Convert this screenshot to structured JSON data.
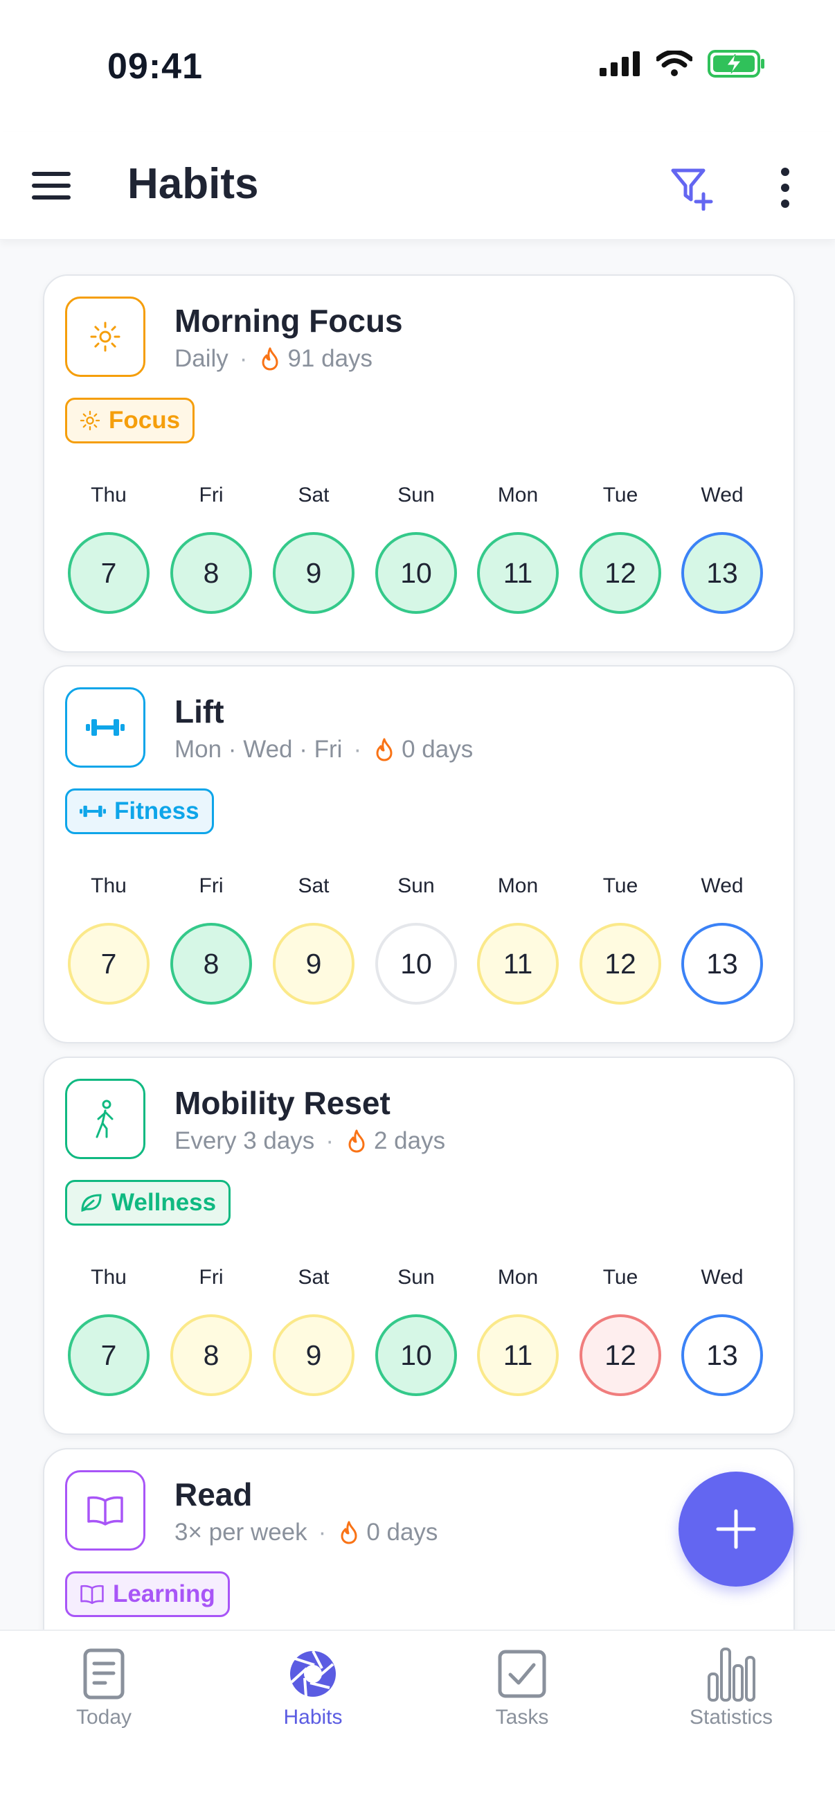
{
  "status": {
    "time": "09:41"
  },
  "header": {
    "title": "Habits"
  },
  "habits": [
    {
      "title": "Morning Focus",
      "frequency": "Daily",
      "streak": "91 days",
      "tag": "Focus",
      "accent": "#f59e0b",
      "tag_bg": "#fff7e6",
      "icon": "sun-icon",
      "days": [
        {
          "name": "Thu",
          "num": "7",
          "state": "done"
        },
        {
          "name": "Fri",
          "num": "8",
          "state": "done"
        },
        {
          "name": "Sat",
          "num": "9",
          "state": "done"
        },
        {
          "name": "Sun",
          "num": "10",
          "state": "done"
        },
        {
          "name": "Mon",
          "num": "11",
          "state": "done"
        },
        {
          "name": "Tue",
          "num": "12",
          "state": "done"
        },
        {
          "name": "Wed",
          "num": "13",
          "state": "done-today"
        }
      ]
    },
    {
      "title": "Lift",
      "frequency": "Mon · Wed · Fri",
      "streak": "0 days",
      "tag": "Fitness",
      "accent": "#0ea5e9",
      "tag_bg": "#eaf6fd",
      "icon": "dumbbell-icon",
      "days": [
        {
          "name": "Thu",
          "num": "7",
          "state": "skip"
        },
        {
          "name": "Fri",
          "num": "8",
          "state": "done"
        },
        {
          "name": "Sat",
          "num": "9",
          "state": "skip"
        },
        {
          "name": "Sun",
          "num": "10",
          "state": "none"
        },
        {
          "name": "Mon",
          "num": "11",
          "state": "skip"
        },
        {
          "name": "Tue",
          "num": "12",
          "state": "skip"
        },
        {
          "name": "Wed",
          "num": "13",
          "state": "today"
        }
      ]
    },
    {
      "title": "Mobility Reset",
      "frequency": "Every 3 days",
      "streak": "2 days",
      "tag": "Wellness",
      "accent": "#10b981",
      "tag_bg": "#e8f8ef",
      "icon": "walking-person-icon",
      "days": [
        {
          "name": "Thu",
          "num": "7",
          "state": "done"
        },
        {
          "name": "Fri",
          "num": "8",
          "state": "skip"
        },
        {
          "name": "Sat",
          "num": "9",
          "state": "skip"
        },
        {
          "name": "Sun",
          "num": "10",
          "state": "done"
        },
        {
          "name": "Mon",
          "num": "11",
          "state": "skip"
        },
        {
          "name": "Tue",
          "num": "12",
          "state": "miss"
        },
        {
          "name": "Wed",
          "num": "13",
          "state": "today"
        }
      ]
    },
    {
      "title": "Read",
      "frequency": "3× per week",
      "streak": "0 days",
      "tag": "Learning",
      "accent": "#a855f7",
      "tag_bg": "#f6eefe",
      "icon": "book-icon",
      "days": []
    }
  ],
  "nav": [
    {
      "label": "Today",
      "icon": "document-icon",
      "active": false
    },
    {
      "label": "Habits",
      "icon": "aperture-icon",
      "active": true
    },
    {
      "label": "Tasks",
      "icon": "checkbox-icon",
      "active": false
    },
    {
      "label": "Statistics",
      "icon": "bar-chart-icon",
      "active": false
    }
  ]
}
